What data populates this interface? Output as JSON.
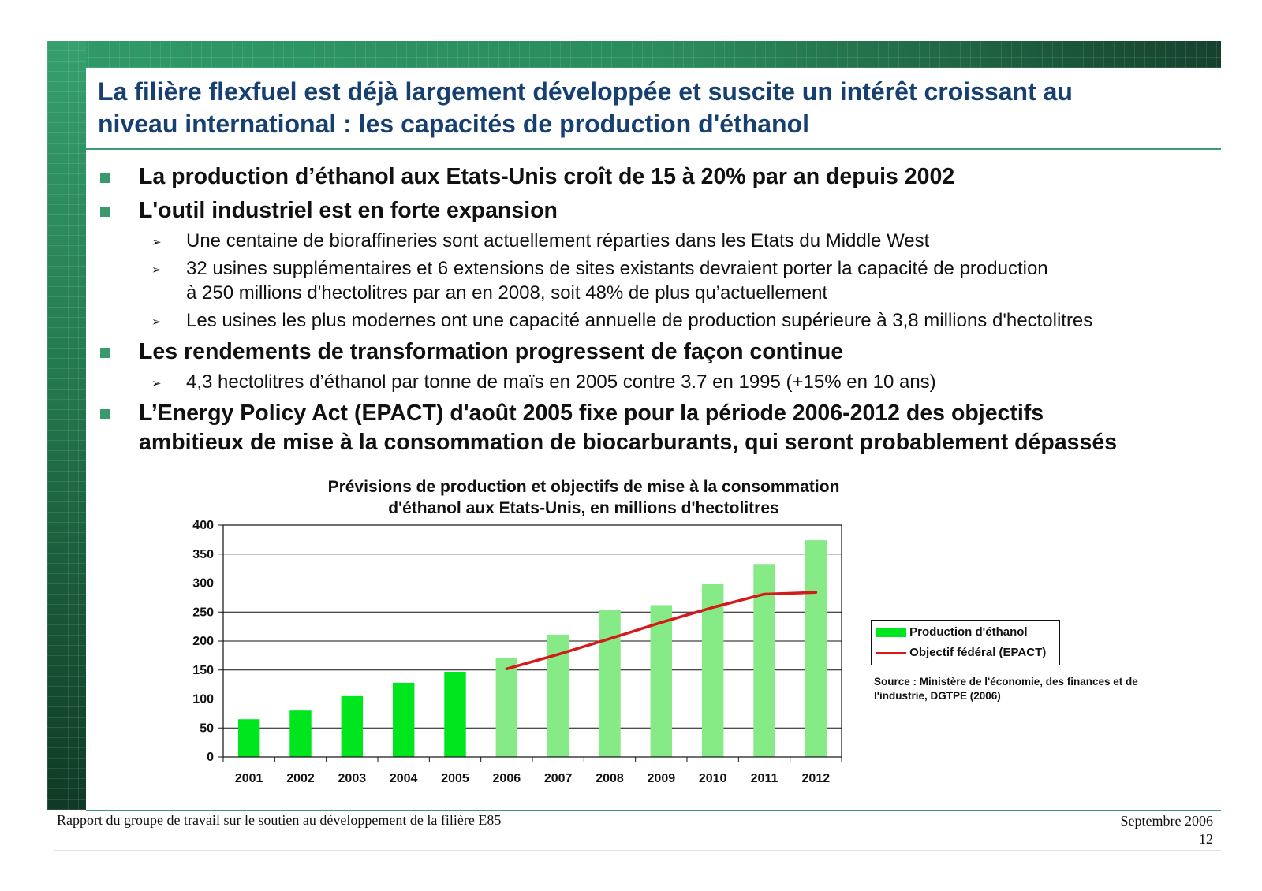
{
  "title": {
    "line1": "La filière flexfuel est déjà largement développée et suscite un intérêt croissant au",
    "line2": "niveau international : les capacités de production d'éthanol"
  },
  "bullets": [
    {
      "lines": [
        "La production d’éthanol aux Etats-Unis croît de 15 à 20% par an depuis 2002"
      ],
      "subs": []
    },
    {
      "lines": [
        "L'outil industriel est en forte expansion"
      ],
      "subs": [
        {
          "lines": [
            "Une centaine de bioraffineries sont actuellement réparties dans les Etats du Middle West"
          ]
        },
        {
          "lines": [
            "32 usines supplémentaires et 6 extensions de sites existants devraient porter la capacité de production",
            "à 250 millions d'hectolitres par an en 2008, soit 48% de plus qu’actuellement"
          ]
        },
        {
          "lines": [
            "Les usines les plus modernes ont une capacité annuelle de production supérieure à 3,8 millions d'hectolitres"
          ]
        }
      ]
    },
    {
      "lines": [
        "Les rendements de transformation progressent de façon continue"
      ],
      "subs": [
        {
          "lines": [
            "4,3 hectolitres d’éthanol par tonne de maïs en 2005 contre 3.7 en 1995 (+15% en 10 ans)"
          ]
        }
      ]
    },
    {
      "lines": [
        "L’Energy Policy Act (EPACT) d'août 2005 fixe pour la période 2006-2012 des objectifs",
        "ambitieux de mise à la consommation de biocarburants, qui seront probablement dépassés"
      ],
      "subs": []
    }
  ],
  "chart_data": {
    "type": "bar",
    "title_line1": "Prévisions de production et objectifs de mise à la consommation",
    "title_line2": "d'éthanol aux Etats-Unis, en millions d'hectolitres",
    "categories": [
      "2001",
      "2002",
      "2003",
      "2004",
      "2005",
      "2006",
      "2007",
      "2008",
      "2009",
      "2010",
      "2011",
      "2012"
    ],
    "series": [
      {
        "name": "Production d'éthanol",
        "kind": "bar",
        "values": [
          65,
          80,
          105,
          128,
          147,
          171,
          211,
          253,
          262,
          298,
          333,
          374
        ],
        "colors": [
          "#00e61e",
          "#00e61e",
          "#00e61e",
          "#00e61e",
          "#00e61e",
          "#86ea86",
          "#86ea86",
          "#86ea86",
          "#86ea86",
          "#86ea86",
          "#86ea86",
          "#86ea86"
        ]
      },
      {
        "name": "Objectif fédéral (EPACT)",
        "kind": "line",
        "color": "#d41a1a",
        "x": [
          "2006",
          "2007",
          "2008",
          "2009",
          "2010",
          "2011",
          "2012"
        ],
        "values": [
          152,
          177,
          204,
          232,
          258,
          281,
          284
        ]
      }
    ],
    "ylim": [
      0,
      400
    ],
    "yticks": [
      0,
      50,
      100,
      150,
      200,
      250,
      300,
      350,
      400
    ],
    "grid": true,
    "legend": "right",
    "source": "Source : Ministère de l'économie, des finances et de l'industrie, DGTPE  (2006)"
  },
  "footer": {
    "left": "Rapport du groupe de travail sur le soutien au développement de la filière E85",
    "date": "Septembre 2006",
    "page": "12"
  }
}
